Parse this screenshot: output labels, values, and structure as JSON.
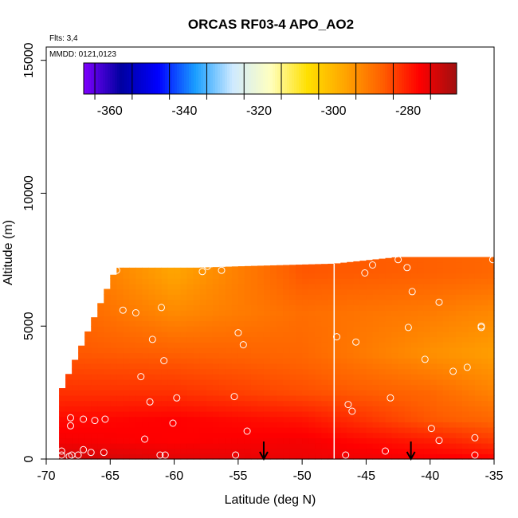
{
  "chart_data": {
    "type": "heatmap",
    "title": "ORCAS RF03-4 APO_AO2",
    "xlabel": "Latitude (deg N)",
    "ylabel": "Altitude (m)",
    "xlim": [
      -70,
      -35
    ],
    "ylim": [
      0,
      15500
    ],
    "xticks": [
      -70,
      -65,
      -60,
      -55,
      -50,
      -45,
      -40,
      -35
    ],
    "yticks": [
      0,
      5000,
      10000,
      15000
    ],
    "annotations": [
      "Flts: 3,4",
      "MMDD: 0121,0123"
    ],
    "colorbar": {
      "range": [
        -367,
        -267
      ],
      "ticks": [
        -360,
        -340,
        -320,
        -300,
        -280
      ],
      "colors": [
        "#7f00ff",
        "#0000a0",
        "#0000ff",
        "#1a9fff",
        "#cfeaff",
        "#ffffc0",
        "#ffe000",
        "#ffa500",
        "#ff6000",
        "#ff0000",
        "#a01010"
      ]
    },
    "field": {
      "lat_range": [
        -69,
        -35
      ],
      "alt_top": [
        [
          -69,
          2400
        ],
        [
          -64.5,
          7200
        ],
        [
          -58,
          7200
        ],
        [
          -55,
          7250
        ],
        [
          -47.5,
          7350
        ],
        [
          -42.5,
          7600
        ],
        [
          -35,
          7600
        ]
      ],
      "layers": [
        {
          "alt": 0,
          "values": [
            [
              -69,
              -272
            ],
            [
              -60,
              -274
            ],
            [
              -50,
              -275
            ],
            [
              -40,
              -276
            ],
            [
              -35,
              -277
            ]
          ]
        },
        {
          "alt": 700,
          "values": [
            [
              -69,
              -276
            ],
            [
              -60,
              -277
            ],
            [
              -50,
              -276
            ],
            [
              -40,
              -280
            ],
            [
              -35,
              -283
            ]
          ]
        },
        {
          "alt": 1500,
          "values": [
            [
              -69,
              -278
            ],
            [
              -60,
              -277
            ],
            [
              -50,
              -279
            ],
            [
              -40,
              -286
            ],
            [
              -35,
              -288
            ]
          ]
        },
        {
          "alt": 2500,
          "values": [
            [
              -69,
              -282
            ],
            [
              -60,
              -282
            ],
            [
              -50,
              -285
            ],
            [
              -40,
              -288
            ],
            [
              -35,
              -292
            ]
          ]
        },
        {
          "alt": 4000,
          "values": [
            [
              -69,
              -286
            ],
            [
              -60,
              -287
            ],
            [
              -50,
              -288
            ],
            [
              -40,
              -294
            ],
            [
              -35,
              -296
            ]
          ]
        },
        {
          "alt": 5500,
          "values": [
            [
              -69,
              -287
            ],
            [
              -60,
              -293
            ],
            [
              -50,
              -289
            ],
            [
              -40,
              -291
            ],
            [
              -35,
              -293
            ]
          ]
        },
        {
          "alt": 7000,
          "values": [
            [
              -69,
              -288
            ],
            [
              -60,
              -297
            ],
            [
              -50,
              -286
            ],
            [
              -40,
              -287
            ],
            [
              -35,
              -288
            ]
          ]
        }
      ]
    },
    "white_column_lat": -47.5,
    "arrows_lat": [
      -53,
      -41.5
    ],
    "points": [
      [
        -64.5,
        7100
      ],
      [
        -57.8,
        7050
      ],
      [
        -57.4,
        7250
      ],
      [
        -56.3,
        7100
      ],
      [
        -64,
        5600
      ],
      [
        -63,
        5500
      ],
      [
        -61,
        5700
      ],
      [
        -55,
        4750
      ],
      [
        -54.6,
        4300
      ],
      [
        -61.7,
        4500
      ],
      [
        -60.8,
        3700
      ],
      [
        -62.6,
        3100
      ],
      [
        -59.8,
        2300
      ],
      [
        -61.9,
        2150
      ],
      [
        -55.3,
        2350
      ],
      [
        -60.1,
        1350
      ],
      [
        -68.1,
        1550
      ],
      [
        -67.1,
        1500
      ],
      [
        -66.2,
        1450
      ],
      [
        -65.4,
        1500
      ],
      [
        -54.3,
        1050
      ],
      [
        -62.3,
        750
      ],
      [
        -68.1,
        1250
      ],
      [
        -47.3,
        4600
      ],
      [
        -45.8,
        4400
      ],
      [
        -44.5,
        7300
      ],
      [
        -45.1,
        7000
      ],
      [
        -42.5,
        7500
      ],
      [
        -41.8,
        7200
      ],
      [
        -41.4,
        6300
      ],
      [
        -39.3,
        5900
      ],
      [
        -36,
        4950
      ],
      [
        -36,
        5000
      ],
      [
        -41.7,
        4950
      ],
      [
        -40.4,
        3750
      ],
      [
        -38.2,
        3300
      ],
      [
        -37.1,
        3450
      ],
      [
        -43.1,
        2300
      ],
      [
        -46.4,
        2050
      ],
      [
        -46.1,
        1800
      ],
      [
        -39.9,
        1150
      ],
      [
        -39.3,
        700
      ],
      [
        -36.5,
        800
      ],
      [
        -35.1,
        7500
      ],
      [
        -68.8,
        300
      ],
      [
        -68.8,
        150
      ],
      [
        -68.2,
        100
      ],
      [
        -68,
        150
      ],
      [
        -67.5,
        150
      ],
      [
        -67.1,
        350
      ],
      [
        -66.5,
        250
      ],
      [
        -65.5,
        250
      ],
      [
        -61.1,
        150
      ],
      [
        -60.7,
        150
      ],
      [
        -55.2,
        150
      ],
      [
        -46.6,
        150
      ],
      [
        -43.5,
        300
      ],
      [
        -36.5,
        150
      ]
    ]
  }
}
